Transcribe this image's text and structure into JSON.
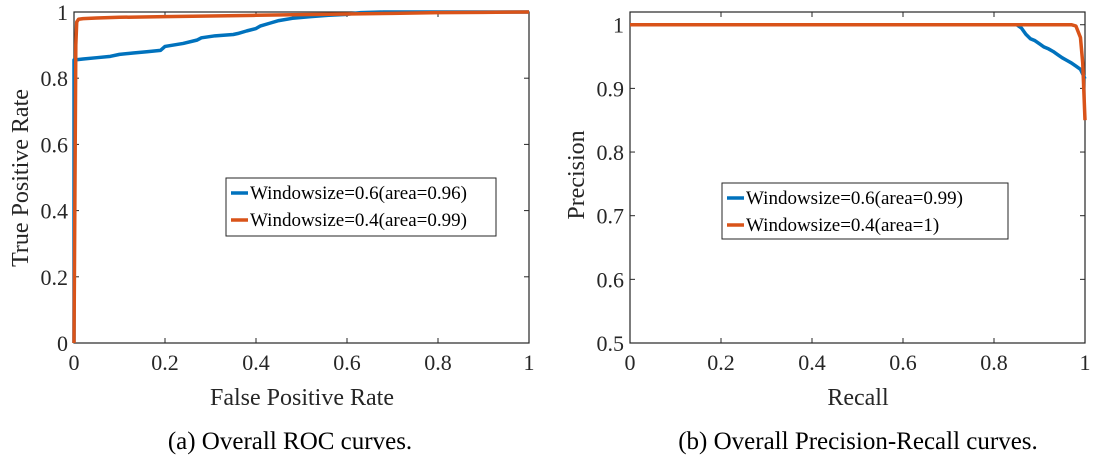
{
  "chart_data": [
    {
      "type": "line",
      "caption": "(a) Overall ROC curves.",
      "xlabel": "False Positive Rate",
      "ylabel": "True Positive Rate",
      "xlim": [
        0,
        1
      ],
      "ylim": [
        0,
        1
      ],
      "xticks": [
        0,
        0.2,
        0.4,
        0.6,
        0.8,
        1
      ],
      "yticks": [
        0,
        0.2,
        0.4,
        0.6,
        0.8,
        1
      ],
      "xtick_labels": [
        "0",
        "0.2",
        "0.4",
        "0.6",
        "0.8",
        "1"
      ],
      "ytick_labels": [
        "0",
        "0.2",
        "0.4",
        "0.6",
        "0.8",
        "1"
      ],
      "grid": false,
      "legend_position": "center-right",
      "series": [
        {
          "name": "Windowsize=0.6(area=0.96)",
          "color": "#0072BD",
          "x": [
            0,
            0,
            0.02,
            0.05,
            0.08,
            0.1,
            0.13,
            0.16,
            0.19,
            0.2,
            0.24,
            0.27,
            0.28,
            0.31,
            0.35,
            0.36,
            0.38,
            0.4,
            0.41,
            0.43,
            0.45,
            0.48,
            0.52,
            0.56,
            0.6,
            0.63,
            0.68,
            0.72,
            0.8,
            0.9,
            1
          ],
          "y": [
            0,
            0.855,
            0.858,
            0.862,
            0.866,
            0.872,
            0.876,
            0.88,
            0.884,
            0.896,
            0.905,
            0.915,
            0.922,
            0.928,
            0.932,
            0.935,
            0.943,
            0.95,
            0.958,
            0.966,
            0.974,
            0.981,
            0.986,
            0.99,
            0.993,
            0.998,
            1,
            1,
            1,
            1,
            1
          ]
        },
        {
          "name": "Windowsize=0.4(area=0.99)",
          "color": "#D95319",
          "x": [
            0,
            0.002,
            0.004,
            0.006,
            0.01,
            0.02,
            0.05,
            0.1,
            0.2,
            0.3,
            0.4,
            0.5,
            0.6,
            0.7,
            0.8,
            0.9,
            1
          ],
          "y": [
            0,
            0.45,
            0.9,
            0.97,
            0.978,
            0.98,
            0.982,
            0.984,
            0.986,
            0.988,
            0.99,
            0.992,
            0.994,
            0.996,
            0.998,
            0.999,
            1
          ]
        }
      ]
    },
    {
      "type": "line",
      "caption": "(b) Overall Precision-Recall curves.",
      "xlabel": "Recall",
      "ylabel": "Precision",
      "xlim": [
        0,
        1
      ],
      "ylim": [
        0.5,
        1.02
      ],
      "xticks": [
        0,
        0.2,
        0.4,
        0.6,
        0.8,
        1
      ],
      "yticks": [
        0.5,
        0.6,
        0.7,
        0.8,
        0.9,
        1
      ],
      "xtick_labels": [
        "0",
        "0.2",
        "0.4",
        "0.6",
        "0.8",
        "1"
      ],
      "ytick_labels": [
        "0.5",
        "0.6",
        "0.7",
        "0.8",
        "0.9",
        "1"
      ],
      "grid": false,
      "legend_position": "center-right",
      "series": [
        {
          "name": "Windowsize=0.6(area=0.99)",
          "color": "#0072BD",
          "x": [
            0,
            0.2,
            0.4,
            0.6,
            0.8,
            0.85,
            0.86,
            0.87,
            0.88,
            0.89,
            0.9,
            0.91,
            0.92,
            0.93,
            0.94,
            0.95,
            0.96,
            0.97,
            0.98,
            0.99,
            1
          ],
          "y": [
            1,
            1,
            1,
            1,
            1,
            1,
            0.995,
            0.985,
            0.978,
            0.975,
            0.97,
            0.965,
            0.962,
            0.958,
            0.953,
            0.948,
            0.944,
            0.94,
            0.935,
            0.93,
            0.915
          ]
        },
        {
          "name": "Windowsize=0.4(area=1)",
          "color": "#D95319",
          "x": [
            0,
            0.2,
            0.4,
            0.6,
            0.8,
            0.9,
            0.95,
            0.97,
            0.98,
            0.99,
            0.995,
            1
          ],
          "y": [
            1,
            1,
            1,
            1,
            1,
            1,
            1,
            1,
            0.998,
            0.98,
            0.94,
            0.85
          ]
        }
      ]
    }
  ]
}
